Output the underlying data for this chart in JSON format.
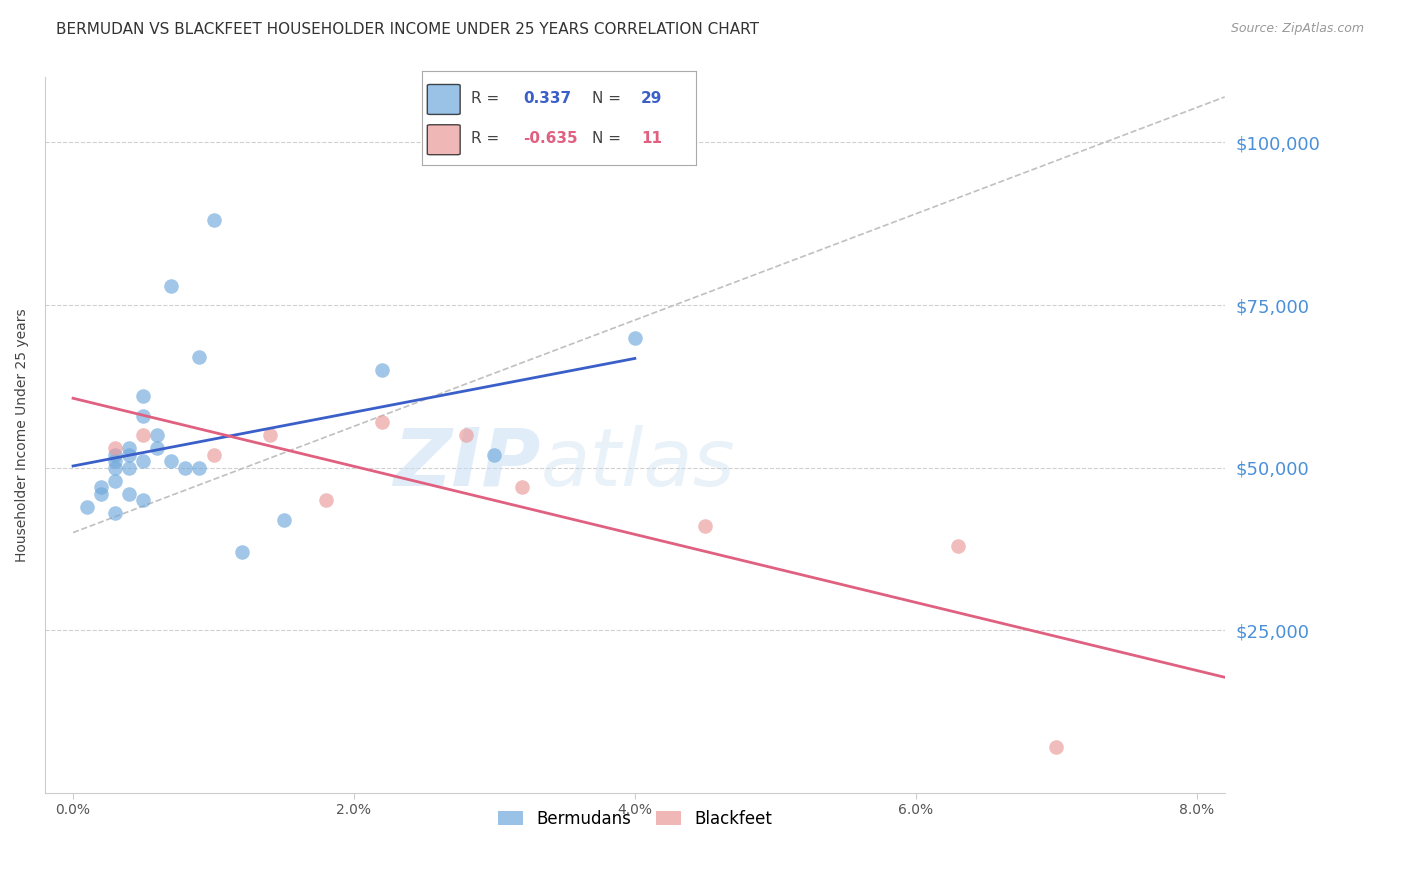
{
  "title": "BERMUDAN VS BLACKFEET HOUSEHOLDER INCOME UNDER 25 YEARS CORRELATION CHART",
  "source": "Source: ZipAtlas.com",
  "ylabel": "Householder Income Under 25 years",
  "xlabel_ticks": [
    "0.0%",
    "2.0%",
    "4.0%",
    "6.0%",
    "8.0%"
  ],
  "xlabel_tick_vals": [
    0.0,
    0.02,
    0.04,
    0.06,
    0.08
  ],
  "ylim": [
    0,
    110000
  ],
  "xlim": [
    -0.002,
    0.082
  ],
  "ytick_labels": [
    "$25,000",
    "$50,000",
    "$75,000",
    "$100,000"
  ],
  "ytick_vals": [
    25000,
    50000,
    75000,
    100000
  ],
  "bermudans_color": "#6fa8dc",
  "blackfeet_color": "#ea9999",
  "bermudans_line_color": "#3a5fc8",
  "blackfeet_line_color": "#e06080",
  "dashed_line_color": "#c0c0c0",
  "bermudans_x": [
    0.001,
    0.002,
    0.002,
    0.003,
    0.003,
    0.003,
    0.003,
    0.003,
    0.004,
    0.004,
    0.004,
    0.004,
    0.005,
    0.005,
    0.005,
    0.005,
    0.006,
    0.006,
    0.007,
    0.007,
    0.008,
    0.009,
    0.009,
    0.01,
    0.012,
    0.015,
    0.022,
    0.03,
    0.04
  ],
  "bermudans_y": [
    44000,
    46000,
    47000,
    52000,
    51000,
    50000,
    48000,
    43000,
    53000,
    52000,
    50000,
    46000,
    61000,
    58000,
    51000,
    45000,
    55000,
    53000,
    78000,
    51000,
    50000,
    67000,
    50000,
    88000,
    37000,
    42000,
    65000,
    52000,
    70000
  ],
  "blackfeet_x": [
    0.003,
    0.005,
    0.01,
    0.014,
    0.018,
    0.022,
    0.028,
    0.032,
    0.045,
    0.063,
    0.07
  ],
  "blackfeet_y": [
    53000,
    55000,
    52000,
    55000,
    45000,
    57000,
    55000,
    47000,
    41000,
    38000,
    7000
  ],
  "watermark_top": "ZIP",
  "watermark_bottom": "atlas",
  "background_color": "#ffffff",
  "title_fontsize": 11,
  "axis_label_fontsize": 10,
  "tick_fontsize": 10,
  "right_ytick_color": "#4a90d9",
  "grid_color": "#d0d0d0",
  "spine_color": "#cccccc"
}
